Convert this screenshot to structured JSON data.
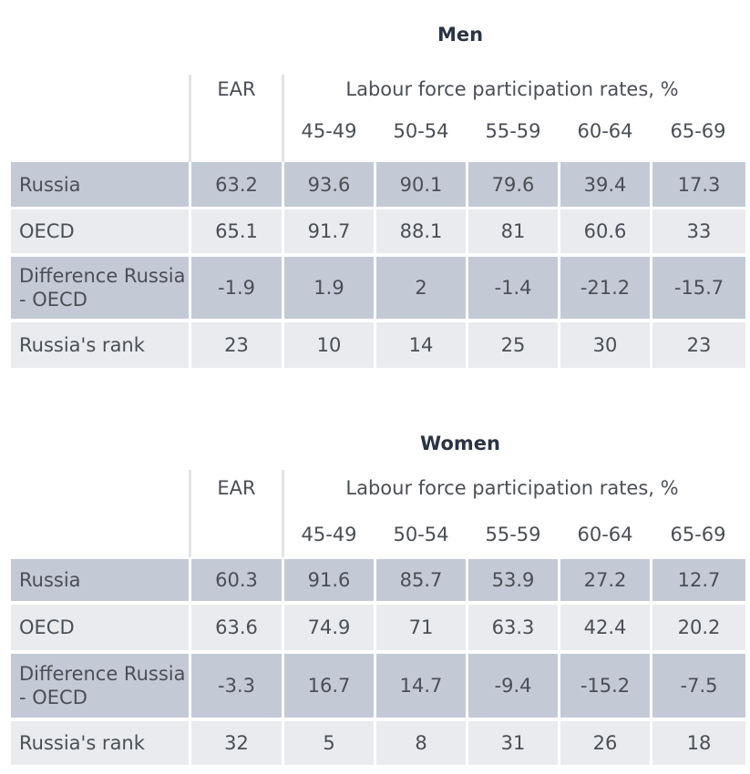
{
  "tables": [
    {
      "title": "Men",
      "header": {
        "ear": "EAR",
        "lfp": "Labour force participation rates, %",
        "age_groups": [
          "45-49",
          "50-54",
          "55-59",
          "60-64",
          "65-69"
        ]
      },
      "rows": [
        {
          "label": "Russia",
          "values": [
            "63.2",
            "93.6",
            "90.1",
            "79.6",
            "39.4",
            "17.3"
          ]
        },
        {
          "label": "OECD",
          "values": [
            "65.1",
            "91.7",
            "88.1",
            "81",
            "60.6",
            "33"
          ]
        },
        {
          "label": "Difference Russia - OECD",
          "values": [
            "-1.9",
            "1.9",
            "2",
            "-1.4",
            "-21.2",
            "-15.7"
          ]
        },
        {
          "label": "Russia's rank",
          "values": [
            "23",
            "10",
            "14",
            "25",
            "30",
            "23"
          ]
        }
      ]
    },
    {
      "title": "Women",
      "header": {
        "ear": "EAR",
        "lfp": "Labour force participation rates, %",
        "age_groups": [
          "45-49",
          "50-54",
          "55-59",
          "60-64",
          "65-69"
        ]
      },
      "rows": [
        {
          "label": "Russia",
          "values": [
            "60.3",
            "91.6",
            "85.7",
            "53.9",
            "27.2",
            "12.7"
          ]
        },
        {
          "label": "OECD",
          "values": [
            "63.6",
            "74.9",
            "71",
            "63.3",
            "42.4",
            "20.2"
          ]
        },
        {
          "label": "Difference Russia - OECD",
          "values": [
            "-3.3",
            "16.7",
            "14.7",
            "-9.4",
            "-15.2",
            "-7.5"
          ]
        },
        {
          "label": "Russia's rank",
          "values": [
            "32",
            "5",
            "8",
            "31",
            "26",
            "18"
          ]
        }
      ]
    }
  ],
  "colors": {
    "dark_row": "#c3cad6",
    "light_row": "#e9ebef",
    "title": "#2b3442",
    "text": "#4a4f55"
  }
}
